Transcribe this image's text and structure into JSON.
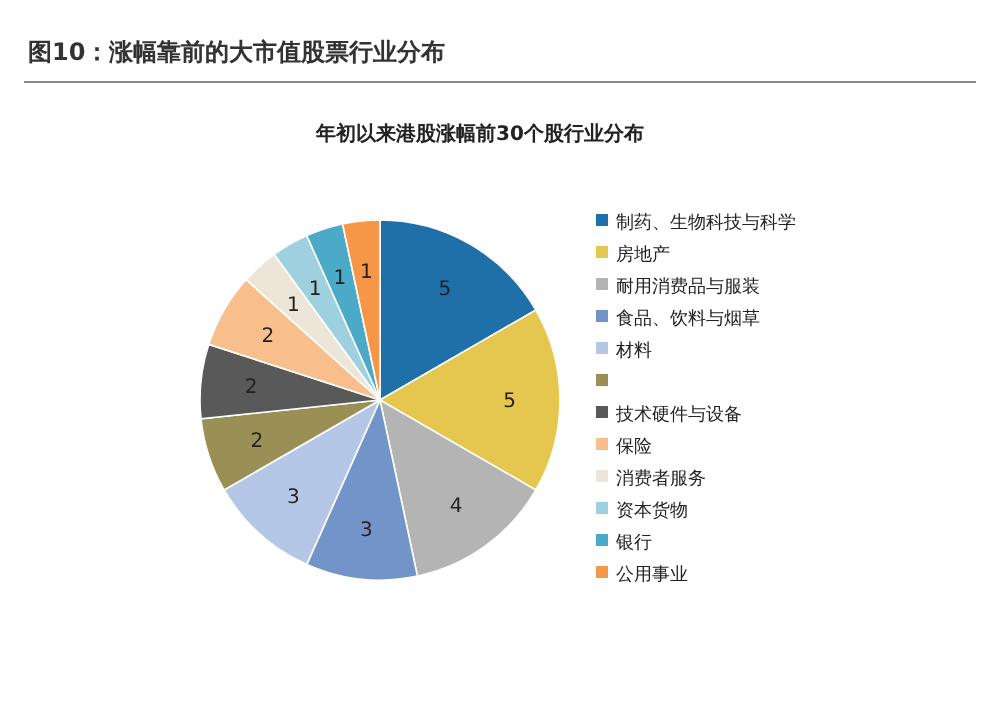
{
  "chart_data": {
    "type": "pie",
    "title": "图10：涨幅靠前的大市值股票行业分布",
    "subtitle": "年初以来港股涨幅前30个股行业分布",
    "categories": [
      "制药、生物科技与科学",
      "房地产",
      "耐用消费品与服装",
      "食品、饮料与烟草",
      "材料",
      null,
      "技术硬件与设备",
      "保险",
      "消费者服务",
      "资本货物",
      "银行",
      "公用事业"
    ],
    "values": [
      5,
      5,
      4,
      3,
      3,
      2,
      2,
      2,
      1,
      1,
      1,
      1
    ],
    "colors": [
      "#1f6fa8",
      "#e5c64f",
      "#b4b4b4",
      "#7394c9",
      "#b4c7e7",
      "#9a8f55",
      "#595959",
      "#f8be8c",
      "#ede6d8",
      "#9fd0e0",
      "#4aaac8",
      "#f79646"
    ],
    "data_labels": true,
    "legend": "right"
  }
}
